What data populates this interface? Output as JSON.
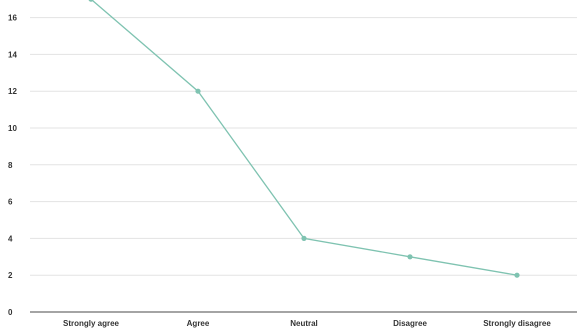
{
  "chart_data": {
    "type": "line",
    "title": "",
    "xlabel": "",
    "ylabel": "",
    "categories": [
      "Strongly agree",
      "Agree",
      "Neutral",
      "Disagree",
      "Strongly disagree"
    ],
    "series": [
      {
        "values": [
          17,
          12,
          4,
          3,
          2
        ],
        "color": "#7fc3b1"
      }
    ],
    "ylim": [
      0,
      17
    ],
    "yticks": [
      0,
      2,
      4,
      6,
      8,
      10,
      12,
      14,
      16
    ],
    "grid": true,
    "legend": "none"
  }
}
